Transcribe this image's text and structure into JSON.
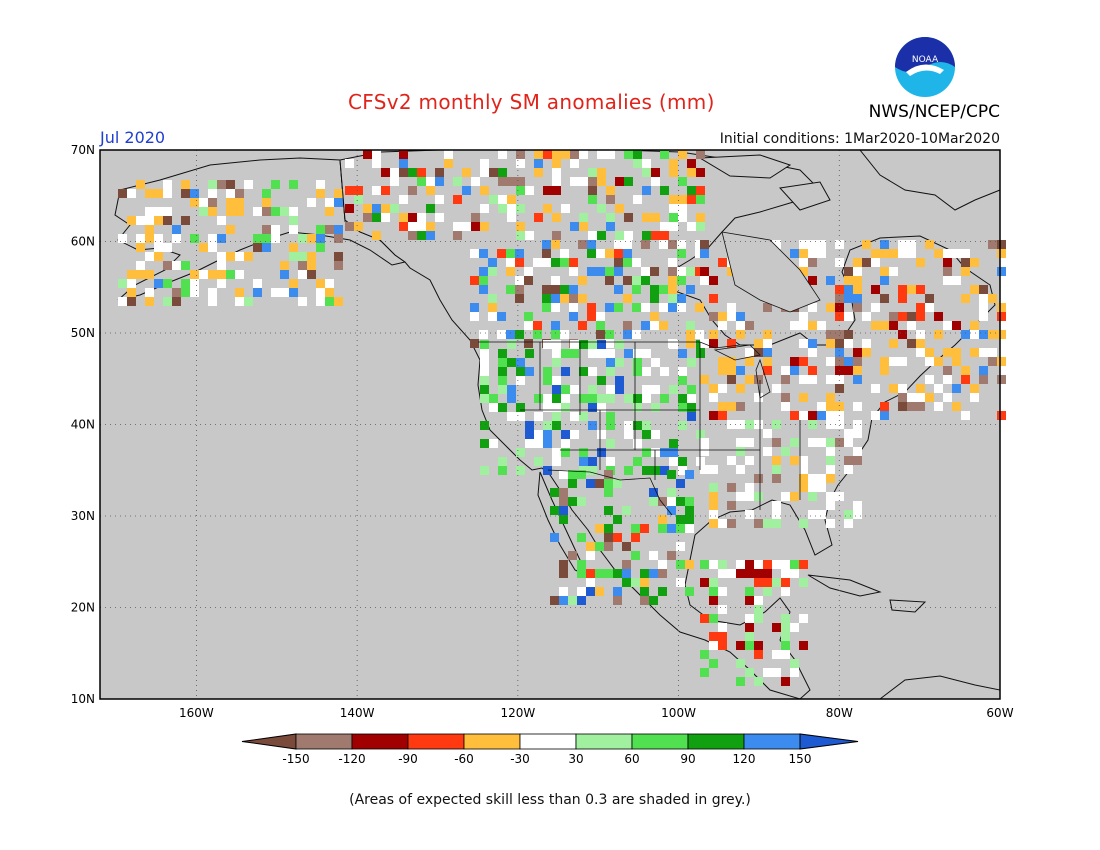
{
  "header": {
    "title": "CFSv2 monthly SM anomalies (mm)",
    "valid_month": "Jul 2020",
    "initial_conditions": "Initial conditions: 1Mar2020-10Mar2020",
    "organization": "NWS/NCEP/CPC",
    "logo_text": "NOAA"
  },
  "map": {
    "projection": "lat-lon",
    "lon_range": [
      -172,
      -60
    ],
    "lat_range": [
      10,
      70
    ],
    "lat_ticks": [
      {
        "value": 70,
        "label": "70N"
      },
      {
        "value": 60,
        "label": "60N"
      },
      {
        "value": 50,
        "label": "50N"
      },
      {
        "value": 40,
        "label": "40N"
      },
      {
        "value": 30,
        "label": "30N"
      },
      {
        "value": 20,
        "label": "20N"
      },
      {
        "value": 10,
        "label": "10N"
      }
    ],
    "lon_ticks": [
      {
        "value": -160,
        "label": "160W"
      },
      {
        "value": -140,
        "label": "140W"
      },
      {
        "value": -120,
        "label": "120W"
      },
      {
        "value": -100,
        "label": "100W"
      },
      {
        "value": -80,
        "label": "80W"
      },
      {
        "value": -60,
        "label": "60W"
      }
    ],
    "ocean_color": "#c8c8c8",
    "low_skill_color": "#c8c8c8"
  },
  "colorbar": {
    "levels": [
      "-150",
      "-120",
      "-90",
      "-60",
      "-30",
      "30",
      "60",
      "90",
      "120",
      "150"
    ],
    "colors": [
      "#7a4a3a",
      "#a07a6e",
      "#a00000",
      "#ff3a10",
      "#ffbe3c",
      "#ffffff",
      "#a0f0a0",
      "#50e050",
      "#10a010",
      "#3c8cf0",
      "#1e5ad2"
    ]
  },
  "footnote": "(Areas of expected skill less than 0.3 are shaded in grey.)"
}
